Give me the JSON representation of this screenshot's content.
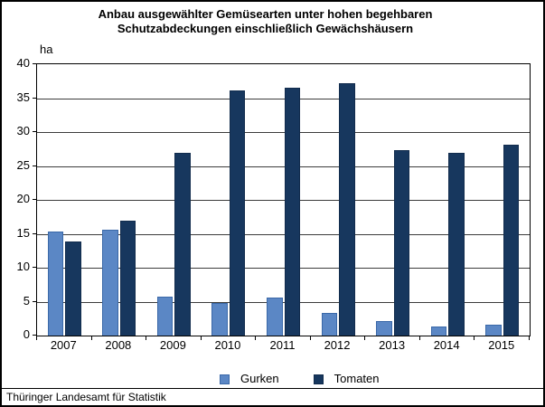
{
  "title": {
    "line1": "Anbau ausgewählter Gemüsearten unter hohen begehbaren",
    "line2": "Schutzabdeckungen einschließlich Gewächshäusern"
  },
  "unit_label": "ha",
  "footer": "Thüringer Landesamt für Statistik",
  "colors": {
    "gurken": "#5B87C5",
    "gurken_border": "#3A68A8",
    "tomaten": "#17375E",
    "tomaten_border": "#122C4D",
    "gridline": "#3c3c3c",
    "axis": "#000000"
  },
  "chart_data": {
    "type": "bar",
    "title": "Anbau ausgewählter Gemüsearten unter hohen begehbaren Schutzabdeckungen einschließlich Gewächshäusern",
    "xlabel": "",
    "ylabel": "ha",
    "categories": [
      "2007",
      "2008",
      "2009",
      "2010",
      "2011",
      "2012",
      "2013",
      "2014",
      "2015"
    ],
    "series": [
      {
        "name": "Gurken",
        "color": "#5B87C5",
        "border": "#3A68A8",
        "values": [
          15.3,
          15.6,
          5.8,
          4.8,
          5.6,
          3.4,
          2.2,
          1.3,
          1.6
        ]
      },
      {
        "name": "Tomaten",
        "color": "#17375E",
        "border": "#122C4D",
        "values": [
          13.9,
          16.9,
          26.9,
          36.1,
          36.5,
          37.2,
          27.3,
          26.9,
          28.2
        ]
      }
    ],
    "ylim": [
      0,
      40
    ],
    "yticks": [
      0,
      5,
      10,
      15,
      20,
      25,
      30,
      35,
      40
    ],
    "grid": true,
    "legend_position": "bottom"
  }
}
